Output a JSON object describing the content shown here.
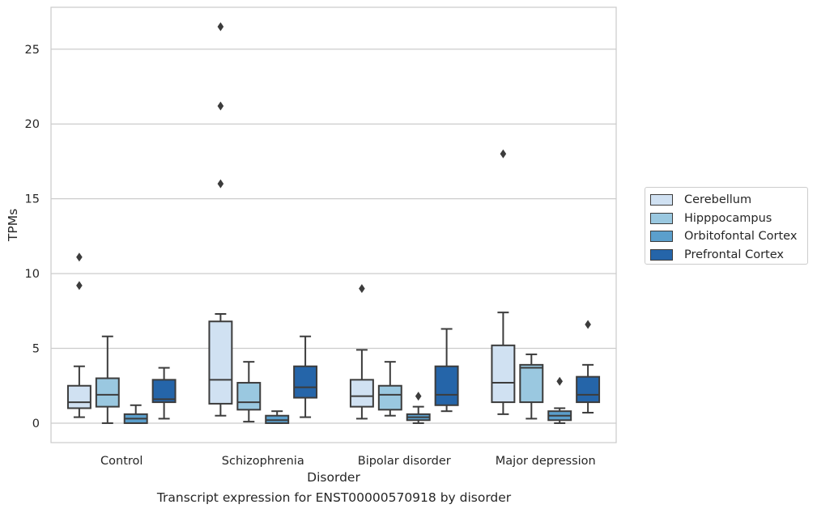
{
  "caption": "Transcript expression for ENST00000570918 by disorder",
  "chart_data": {
    "type": "box",
    "xlabel": "Disorder",
    "ylabel": "TPMs",
    "ylim": [
      -1.3,
      27.8
    ],
    "yticks": [
      0,
      5,
      10,
      15,
      20,
      25
    ],
    "grid": "horizontal",
    "legend_position": "right",
    "categories": [
      "Control",
      "Schizophrenia",
      "Bipolar disorder",
      "Major depression"
    ],
    "series": [
      {
        "name": "Cerebellum",
        "color": "#d0e1f2",
        "boxes": [
          {
            "whisker_low": 0.4,
            "q1": 1.0,
            "median": 1.4,
            "q3": 2.5,
            "whisker_high": 3.8,
            "outliers": [
              9.2,
              11.1
            ]
          },
          {
            "whisker_low": 0.5,
            "q1": 1.3,
            "median": 2.9,
            "q3": 6.8,
            "whisker_high": 7.3,
            "outliers": [
              16.0,
              21.2,
              26.5
            ]
          },
          {
            "whisker_low": 0.3,
            "q1": 1.1,
            "median": 1.8,
            "q3": 2.9,
            "whisker_high": 4.9,
            "outliers": [
              9.0
            ]
          },
          {
            "whisker_low": 0.6,
            "q1": 1.4,
            "median": 2.7,
            "q3": 5.2,
            "whisker_high": 7.4,
            "outliers": [
              18.0
            ]
          }
        ]
      },
      {
        "name": "Hipppocampus",
        "color": "#9ac8e0",
        "boxes": [
          {
            "whisker_low": 0.0,
            "q1": 1.1,
            "median": 1.9,
            "q3": 3.0,
            "whisker_high": 5.8,
            "outliers": []
          },
          {
            "whisker_low": 0.1,
            "q1": 0.9,
            "median": 1.4,
            "q3": 2.7,
            "whisker_high": 4.1,
            "outliers": []
          },
          {
            "whisker_low": 0.5,
            "q1": 0.9,
            "median": 1.9,
            "q3": 2.5,
            "whisker_high": 4.1,
            "outliers": []
          },
          {
            "whisker_low": 0.3,
            "q1": 1.4,
            "median": 3.7,
            "q3": 3.9,
            "whisker_high": 4.6,
            "outliers": []
          }
        ]
      },
      {
        "name": "Orbitofontal Cortex",
        "color": "#5b9fcc",
        "boxes": [
          {
            "whisker_low": 0.0,
            "q1": 0.0,
            "median": 0.3,
            "q3": 0.6,
            "whisker_high": 1.2,
            "outliers": []
          },
          {
            "whisker_low": 0.0,
            "q1": 0.0,
            "median": 0.2,
            "q3": 0.5,
            "whisker_high": 0.8,
            "outliers": []
          },
          {
            "whisker_low": 0.0,
            "q1": 0.2,
            "median": 0.4,
            "q3": 0.6,
            "whisker_high": 1.1,
            "outliers": [
              1.8
            ]
          },
          {
            "whisker_low": 0.0,
            "q1": 0.2,
            "median": 0.5,
            "q3": 0.8,
            "whisker_high": 1.0,
            "outliers": [
              2.8
            ]
          }
        ]
      },
      {
        "name": "Prefrontal Cortex",
        "color": "#2565a9",
        "boxes": [
          {
            "whisker_low": 0.3,
            "q1": 1.4,
            "median": 1.6,
            "q3": 2.9,
            "whisker_high": 3.7,
            "outliers": []
          },
          {
            "whisker_low": 0.4,
            "q1": 1.7,
            "median": 2.4,
            "q3": 3.8,
            "whisker_high": 5.8,
            "outliers": []
          },
          {
            "whisker_low": 0.8,
            "q1": 1.2,
            "median": 1.9,
            "q3": 3.8,
            "whisker_high": 6.3,
            "outliers": []
          },
          {
            "whisker_low": 0.7,
            "q1": 1.4,
            "median": 1.9,
            "q3": 3.1,
            "whisker_high": 3.9,
            "outliers": [
              6.6
            ]
          }
        ]
      }
    ]
  }
}
